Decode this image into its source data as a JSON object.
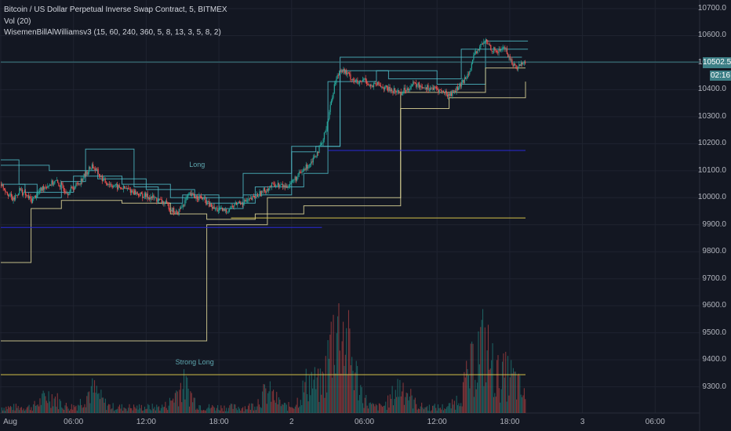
{
  "legend": {
    "symbol": "Bitcoin / US Dollar Perpetual Inverse Swap Contract, 5, BITMEX",
    "volume": "Vol (20)",
    "indicator": "WisemenBillAlWilliamsv3 (15, 60, 240, 360, 5, 8, 13, 3, 5, 8, 2)"
  },
  "price_badge": "10502.5",
  "time_badge": "02:16",
  "annotations": [
    {
      "text": "Long",
      "x": 16.2,
      "y": 10120
    },
    {
      "text": "Strong Long",
      "x": 16.0,
      "y": 9390
    }
  ],
  "colors": {
    "background": "#131722",
    "grid": "#1f2330",
    "up": "#26a69a",
    "down": "#ef5350",
    "cyan_line": "#4fb8c4",
    "yellow_line": "#e3d99a",
    "blue_line": "#2a2ad8",
    "gold_line": "#d4c14a"
  },
  "chart_data": {
    "type": "candlestick",
    "x_unit": "hours",
    "y_unit": "USD",
    "ylim": [
      9225,
      10725
    ],
    "xlim": [
      0,
      47.5
    ],
    "y_ticks": [
      10700,
      10600,
      10500,
      10400,
      10300,
      10200,
      10100,
      10000,
      9900,
      9800,
      9700,
      9600,
      9500,
      9400,
      9300
    ],
    "y_tick_labels": [
      "10700.0",
      "10600.0",
      "10500.0",
      "10400.0",
      "10300.0",
      "10200.0",
      "10100.0",
      "10000.0",
      "9900.0",
      "9800.0",
      "9700.0",
      "9600.0",
      "9500.0",
      "9400.0",
      "9300.0"
    ],
    "x_ticks": [
      0,
      6,
      12,
      18,
      24,
      30,
      36,
      42,
      48,
      54
    ],
    "x_tick_labels": [
      "Aug",
      "06:00",
      "12:00",
      "18:00",
      "2",
      "06:00",
      "12:00",
      "18:00",
      "3",
      "06:00"
    ],
    "last_price": 10502.5,
    "price_path": [
      [
        0,
        10050
      ],
      [
        1,
        9990
      ],
      [
        1.5,
        10030
      ],
      [
        2.5,
        9990
      ],
      [
        3.5,
        10040
      ],
      [
        4.5,
        10060
      ],
      [
        5.5,
        10020
      ],
      [
        6.5,
        10060
      ],
      [
        7.5,
        10120
      ],
      [
        8.5,
        10060
      ],
      [
        9.5,
        10040
      ],
      [
        10.5,
        10030
      ],
      [
        11.5,
        10010
      ],
      [
        12.5,
        10000
      ],
      [
        13.5,
        9980
      ],
      [
        14.5,
        9940
      ],
      [
        15.5,
        10010
      ],
      [
        16.5,
        10000
      ],
      [
        17.5,
        9960
      ],
      [
        18.5,
        9950
      ],
      [
        19.5,
        9980
      ],
      [
        20.5,
        9990
      ],
      [
        21.5,
        10020
      ],
      [
        22.5,
        10050
      ],
      [
        23.5,
        10040
      ],
      [
        24.5,
        10080
      ],
      [
        25.5,
        10130
      ],
      [
        26.5,
        10200
      ],
      [
        27,
        10300
      ],
      [
        27.5,
        10420
      ],
      [
        28,
        10480
      ],
      [
        28.5,
        10460
      ],
      [
        29,
        10440
      ],
      [
        29.5,
        10420
      ],
      [
        30,
        10440
      ],
      [
        30.5,
        10410
      ],
      [
        31,
        10420
      ],
      [
        32,
        10400
      ],
      [
        33,
        10390
      ],
      [
        34,
        10420
      ],
      [
        35,
        10410
      ],
      [
        36,
        10400
      ],
      [
        37,
        10380
      ],
      [
        38,
        10420
      ],
      [
        38.5,
        10460
      ],
      [
        39,
        10520
      ],
      [
        39.5,
        10560
      ],
      [
        40,
        10580
      ],
      [
        40.5,
        10550
      ],
      [
        41,
        10540
      ],
      [
        41.5,
        10560
      ],
      [
        42,
        10510
      ],
      [
        42.5,
        10480
      ],
      [
        43,
        10500
      ],
      [
        43.3,
        10502.5
      ]
    ],
    "levels": [
      {
        "color": "cyan",
        "path": [
          [
            0,
            10140
          ],
          [
            1.5,
            10140
          ],
          [
            1.5,
            10050
          ],
          [
            3,
            10050
          ],
          [
            3,
            10000
          ],
          [
            5,
            10000
          ],
          [
            5,
            10060
          ],
          [
            7,
            10060
          ],
          [
            7,
            10180
          ],
          [
            11,
            10180
          ],
          [
            11,
            10040
          ],
          [
            13,
            10040
          ],
          [
            13,
            9980
          ],
          [
            15,
            9980
          ],
          [
            15,
            10010
          ],
          [
            18,
            10010
          ],
          [
            18,
            9960
          ],
          [
            20,
            9960
          ],
          [
            20,
            10090
          ],
          [
            24,
            10090
          ],
          [
            24,
            10170
          ],
          [
            26,
            10170
          ],
          [
            26,
            10190
          ],
          [
            28,
            10190
          ],
          [
            28,
            10520
          ],
          [
            43,
            10520
          ]
        ]
      },
      {
        "color": "cyan",
        "path": [
          [
            0,
            10050
          ],
          [
            2,
            10050
          ],
          [
            2,
            10020
          ],
          [
            6,
            10020
          ],
          [
            6,
            10080
          ],
          [
            10,
            10080
          ],
          [
            10,
            10050
          ],
          [
            14,
            10050
          ],
          [
            14,
            10000
          ],
          [
            17,
            10000
          ],
          [
            17,
            9980
          ],
          [
            21,
            9980
          ],
          [
            21,
            10040
          ],
          [
            25,
            10040
          ],
          [
            25,
            10090
          ],
          [
            27,
            10090
          ],
          [
            27,
            10430
          ],
          [
            31,
            10430
          ],
          [
            31,
            10470
          ],
          [
            36,
            10470
          ],
          [
            36,
            10420
          ],
          [
            40,
            10420
          ],
          [
            40,
            10580
          ],
          [
            43.5,
            10580
          ]
        ]
      },
      {
        "color": "cyan",
        "path": [
          [
            0,
            10120
          ],
          [
            4,
            10120
          ],
          [
            4,
            10100
          ],
          [
            8,
            10100
          ],
          [
            8,
            10070
          ],
          [
            12,
            10070
          ],
          [
            12,
            10030
          ],
          [
            16,
            10030
          ],
          [
            16,
            10000
          ],
          [
            20,
            10000
          ],
          [
            20,
            10010
          ],
          [
            24,
            10010
          ],
          [
            24,
            10190
          ],
          [
            28,
            10190
          ],
          [
            28,
            10470
          ],
          [
            32,
            10470
          ],
          [
            32,
            10440
          ],
          [
            38,
            10440
          ],
          [
            38,
            10550
          ],
          [
            43.5,
            10550
          ]
        ]
      },
      {
        "color": "yellow",
        "path": [
          [
            0,
            9760
          ],
          [
            2.5,
            9760
          ],
          [
            2.5,
            9960
          ],
          [
            5,
            9960
          ],
          [
            5,
            9990
          ],
          [
            10,
            9990
          ],
          [
            10,
            9980
          ],
          [
            14,
            9980
          ],
          [
            14,
            9940
          ],
          [
            17,
            9940
          ],
          [
            17,
            9920
          ],
          [
            21,
            9920
          ],
          [
            21,
            9940
          ],
          [
            25,
            9940
          ],
          [
            25,
            9970
          ],
          [
            33,
            9970
          ],
          [
            33,
            10330
          ],
          [
            37,
            10330
          ],
          [
            37,
            10370
          ],
          [
            43.3,
            10370
          ],
          [
            43.3,
            10430
          ]
        ]
      },
      {
        "color": "yellow",
        "path": [
          [
            0,
            9470
          ],
          [
            17,
            9470
          ],
          [
            17,
            9900
          ],
          [
            22,
            9900
          ],
          [
            22,
            10000
          ],
          [
            30,
            10000
          ],
          [
            30,
            10000
          ],
          [
            33,
            10000
          ],
          [
            33,
            10390
          ],
          [
            40,
            10390
          ],
          [
            40,
            10480
          ],
          [
            43.3,
            10480
          ]
        ]
      }
    ],
    "horizontal_lines": [
      {
        "color": "blue",
        "y": 10175,
        "x0": 27,
        "x1": 43.3
      },
      {
        "color": "blue",
        "y": 9890,
        "x0": 0,
        "x1": 26.5
      },
      {
        "color": "gold",
        "y": 9925,
        "x0": 19,
        "x1": 43.3
      },
      {
        "color": "gold",
        "y": 9345,
        "x0": 0,
        "x1": 43.3
      },
      {
        "color": "teal",
        "y": 10502.5,
        "x0": 0,
        "x1": 47.5
      }
    ],
    "volume_peaks": [
      [
        4,
        0.25
      ],
      [
        7.5,
        0.35
      ],
      [
        15,
        0.45
      ],
      [
        22,
        0.3
      ],
      [
        25.5,
        0.55
      ],
      [
        27.5,
        1.0
      ],
      [
        28,
        0.85
      ],
      [
        29,
        0.6
      ],
      [
        33,
        0.45
      ],
      [
        38.5,
        0.4
      ],
      [
        39.5,
        0.55
      ],
      [
        40,
        0.75
      ],
      [
        41.5,
        0.5
      ],
      [
        42.5,
        0.35
      ]
    ]
  }
}
